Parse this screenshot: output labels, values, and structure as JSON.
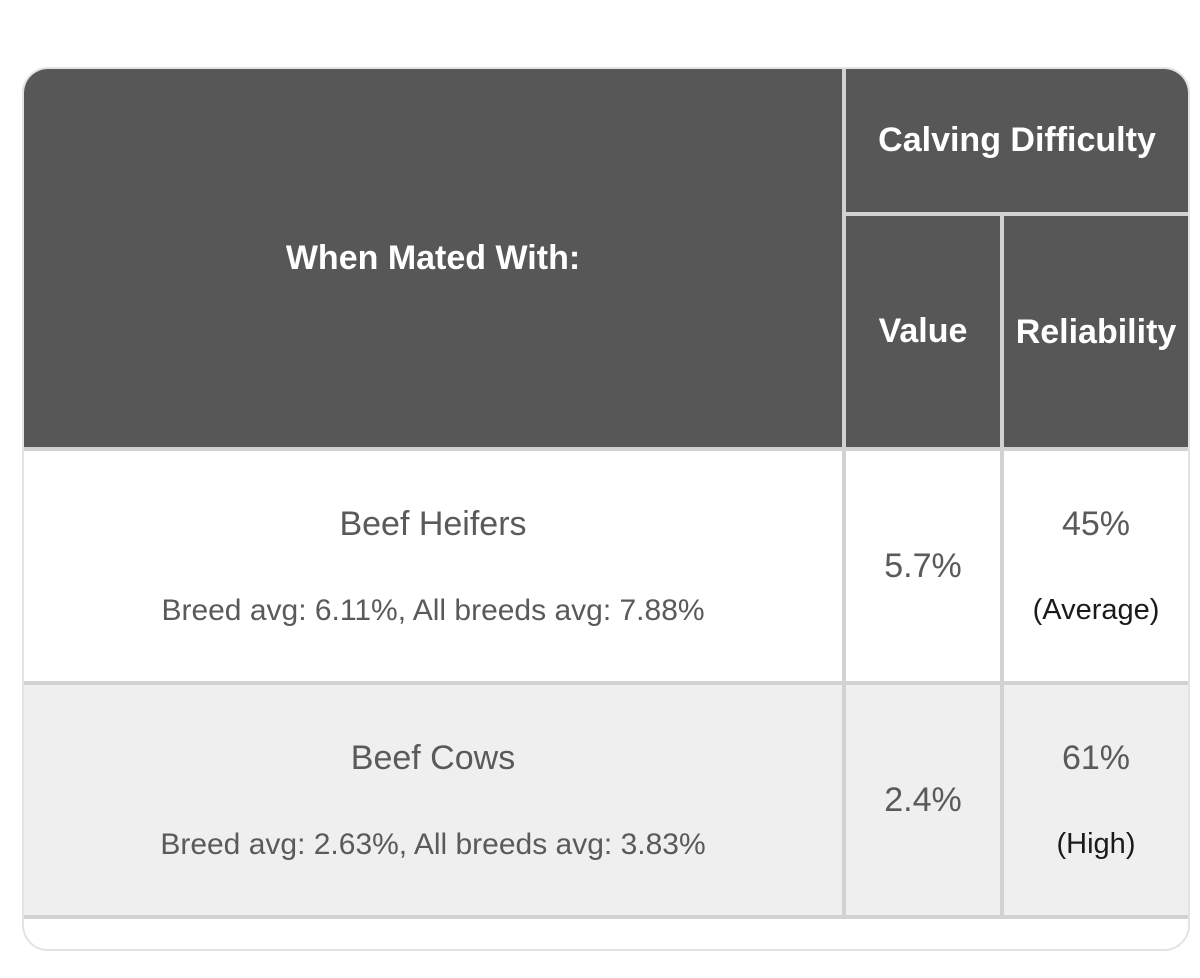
{
  "table": {
    "header": {
      "mated_with": "When Mated With:",
      "calving_difficulty": "Calving Difficulty",
      "value": "Value",
      "reliability": "Reliability"
    },
    "rows": [
      {
        "category": "Beef Heifers",
        "averages": "Breed avg: 6.11%, All breeds avg: 7.88%",
        "value": "5.7%",
        "reliability_pct": "45%",
        "reliability_level": "(Average)"
      },
      {
        "category": "Beef Cows",
        "averages": "Breed avg: 2.63%, All breeds avg: 3.83%",
        "value": "2.4%",
        "reliability_pct": "61%",
        "reliability_level": "(High)"
      }
    ]
  }
}
